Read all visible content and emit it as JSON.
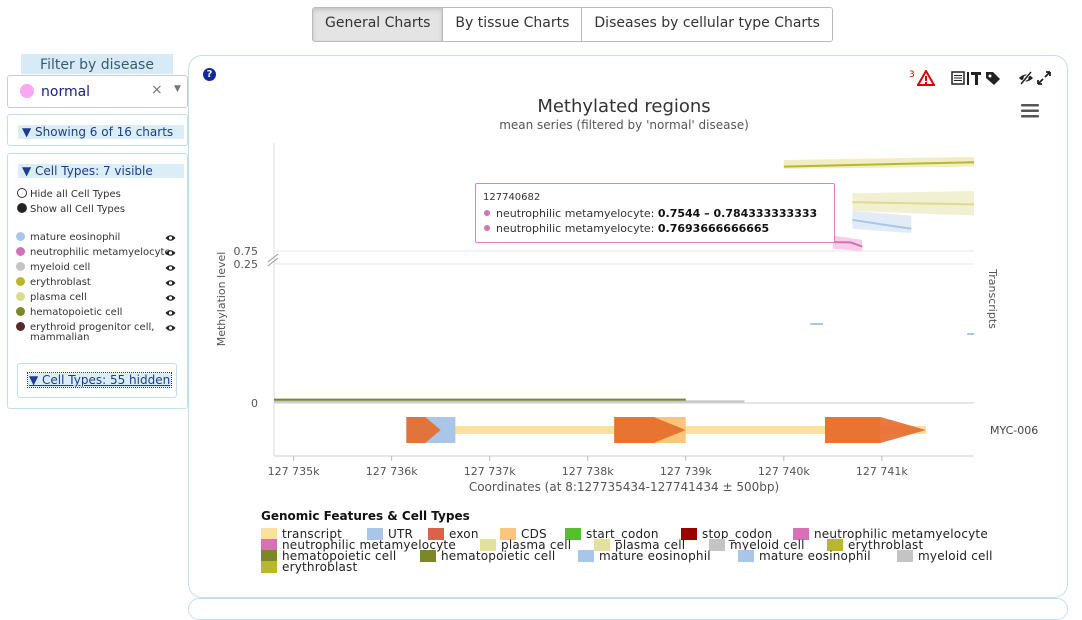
{
  "tabs": [
    {
      "label": "General Charts",
      "active": true
    },
    {
      "label": "By tissue Charts",
      "active": false
    },
    {
      "label": "Diseases by cellular type Charts",
      "active": false
    }
  ],
  "filter": {
    "title": "Filter by disease",
    "selected": "normal",
    "selected_color": "#f7a8f1",
    "clear_symbol": "×",
    "caret_symbol": "▼"
  },
  "charts_summary": "▼ Showing 6 of 16 charts",
  "cell_types": {
    "header": "▼ Cell Types: 7 visible",
    "hide_all": "Hide all Cell Types",
    "show_all": "Show all Cell Types",
    "items": [
      {
        "label": "mature eosinophil",
        "color": "#a9c6e8"
      },
      {
        "label": "neutrophilic metamyelocyte",
        "color": "#d671b7"
      },
      {
        "label": "myeloid cell",
        "color": "#c4c4c4"
      },
      {
        "label": "erythroblast",
        "color": "#b8b82e"
      },
      {
        "label": "plasma cell",
        "color": "#dcdc8e"
      },
      {
        "label": "hematopoietic cell",
        "color": "#7c8727"
      },
      {
        "label": "erythroid progenitor cell,",
        "label2": "mammalian",
        "color": "#5a2a2a"
      }
    ],
    "hidden_button": "▼ Cell Types: 55 hidden"
  },
  "chart": {
    "help": "?",
    "warning_count": "3",
    "title": "Methylated regions",
    "subtitle": "mean series (filtered by 'normal' disease)",
    "y_label": "Methylation level",
    "right_label": "Transcripts",
    "x_label": "Coordinates (at 8:127735434-127741434 ± 500bp)",
    "transcript_name": "MYC-006",
    "tooltip": {
      "position": "127740682",
      "rows": [
        {
          "label": "neutrophilic metamyelocyte:",
          "value": "0.7544 – 0.784333333333"
        },
        {
          "label": "neutrophilic metamyelocyte:",
          "value": "0.7693666666665"
        }
      ]
    }
  },
  "chart_data": {
    "type": "line",
    "title": "Methylated regions",
    "subtitle": "mean series (filtered by 'normal' disease)",
    "xlabel": "Coordinates (at 8:127735434-127741434 ± 500bp)",
    "ylabel": "Methylation level",
    "xlim": [
      127734800,
      127741940
    ],
    "x_ticks": [
      127735000,
      127736000,
      127737000,
      127738000,
      127739000,
      127740000,
      127741000
    ],
    "x_tick_labels": [
      "127 735k",
      "127 736k",
      "127 737k",
      "127 738k",
      "127 739k",
      "127 740k",
      "127 741k"
    ],
    "y_ticks": [
      0,
      0.25,
      0.75
    ],
    "y_tick_labels": [
      "0",
      "0.25",
      "0.75"
    ],
    "y_axis_break": [
      0.25,
      0.75
    ],
    "series": [
      {
        "name": "erythroblast",
        "color": "#b8b82e",
        "x": [
          127740000,
          127741940
        ],
        "y": [
          0.94,
          0.95
        ]
      },
      {
        "name": "plasma cell",
        "color": "#dcdc8e",
        "x": [
          127740700,
          127741940
        ],
        "y": [
          0.86,
          0.855
        ]
      },
      {
        "name": "mature eosinophil",
        "color": "#a9c6e8",
        "x": [
          127740700,
          127741300
        ],
        "y": [
          0.82,
          0.8
        ]
      },
      {
        "name": "neutrophilic metamyelocyte",
        "color": "#d671b7",
        "x": [
          127740500,
          127740682,
          127740800
        ],
        "y": [
          0.77,
          0.7694,
          0.76
        ]
      },
      {
        "name": "myeloid cell",
        "color": "#c4c4c4",
        "x": [
          127734800,
          127739600
        ],
        "y": [
          0.003,
          0.003
        ]
      },
      {
        "name": "hematopoietic cell",
        "color": "#7c8727",
        "x": [
          127734800,
          127739000
        ],
        "y": [
          0.006,
          0.006
        ]
      }
    ],
    "legend": {
      "title": "Genomic Features & Cell Types",
      "position": "bottom",
      "items": [
        {
          "label": "transcript",
          "color": "#fce0a0"
        },
        {
          "label": "UTR",
          "color": "#a9c6e8"
        },
        {
          "label": "exon",
          "color": "#d9634a"
        },
        {
          "label": "CDS",
          "color": "#fbc57e"
        },
        {
          "label": "start_codon",
          "color": "#55c02b"
        },
        {
          "label": "stop_codon",
          "color": "#9b0000"
        },
        {
          "label": "neutrophilic metamyelocyte",
          "color": "#d671b7"
        },
        {
          "label": "neutrophilic metamyelocyte",
          "color": "#d671b7"
        },
        {
          "label": "plasma cell",
          "color": "#e4e19e"
        },
        {
          "label": "plasma cell",
          "color": "#e4e19e"
        },
        {
          "label": "myeloid cell",
          "color": "#c4c4c4"
        },
        {
          "label": "erythroblast",
          "color": "#b8b82e"
        },
        {
          "label": "hematopoietic cell",
          "color": "#7c8727"
        },
        {
          "label": "hematopoietic cell",
          "color": "#7c8727"
        },
        {
          "label": "mature eosinophil",
          "color": "#a9c6e8"
        },
        {
          "label": "mature eosinophil",
          "color": "#a9c6e8"
        },
        {
          "label": "myeloid cell",
          "color": "#c4c4c4"
        },
        {
          "label": "erythroblast",
          "color": "#b8b82e"
        }
      ]
    },
    "transcript_track": {
      "name": "MYC-006",
      "transcript": [
        127736150,
        127741450
      ],
      "utr": [
        [
          127736150,
          127736650
        ]
      ],
      "exons": [
        [
          127736150,
          127736500
        ],
        [
          127738270,
          127739000
        ],
        [
          127740420,
          127741450
        ]
      ],
      "cds": [
        [
          127738270,
          127739000
        ],
        [
          127740420,
          127740980
        ]
      ]
    }
  }
}
